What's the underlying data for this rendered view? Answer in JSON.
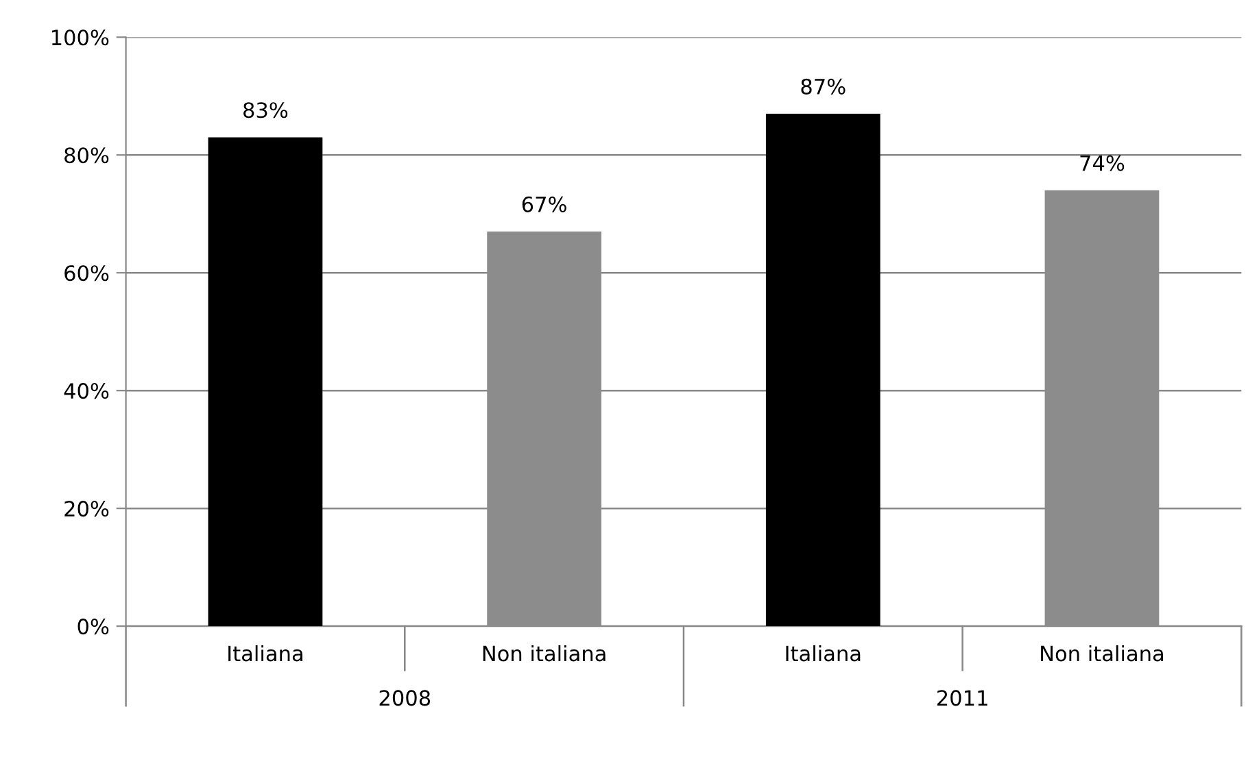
{
  "chart_data": {
    "type": "bar",
    "categories": [
      "Italiana",
      "Non italiana",
      "Italiana",
      "Non italiana"
    ],
    "values": [
      83,
      67,
      87,
      74
    ],
    "colors": [
      "#000000",
      "#8c8c8c",
      "#000000",
      "#8c8c8c"
    ],
    "value_labels": [
      "83%",
      "67%",
      "87%",
      "74%"
    ],
    "annotations": [
      "2008",
      "2011"
    ],
    "ylim": [
      0,
      100
    ],
    "yticks": [
      {
        "value": 0,
        "label": "0%"
      },
      {
        "value": 20,
        "label": "20%"
      },
      {
        "value": 40,
        "label": "40%"
      },
      {
        "value": 60,
        "label": "60%"
      },
      {
        "value": 80,
        "label": "80%"
      },
      {
        "value": 100,
        "label": "100%"
      }
    ],
    "grid": "y",
    "legend": false
  }
}
